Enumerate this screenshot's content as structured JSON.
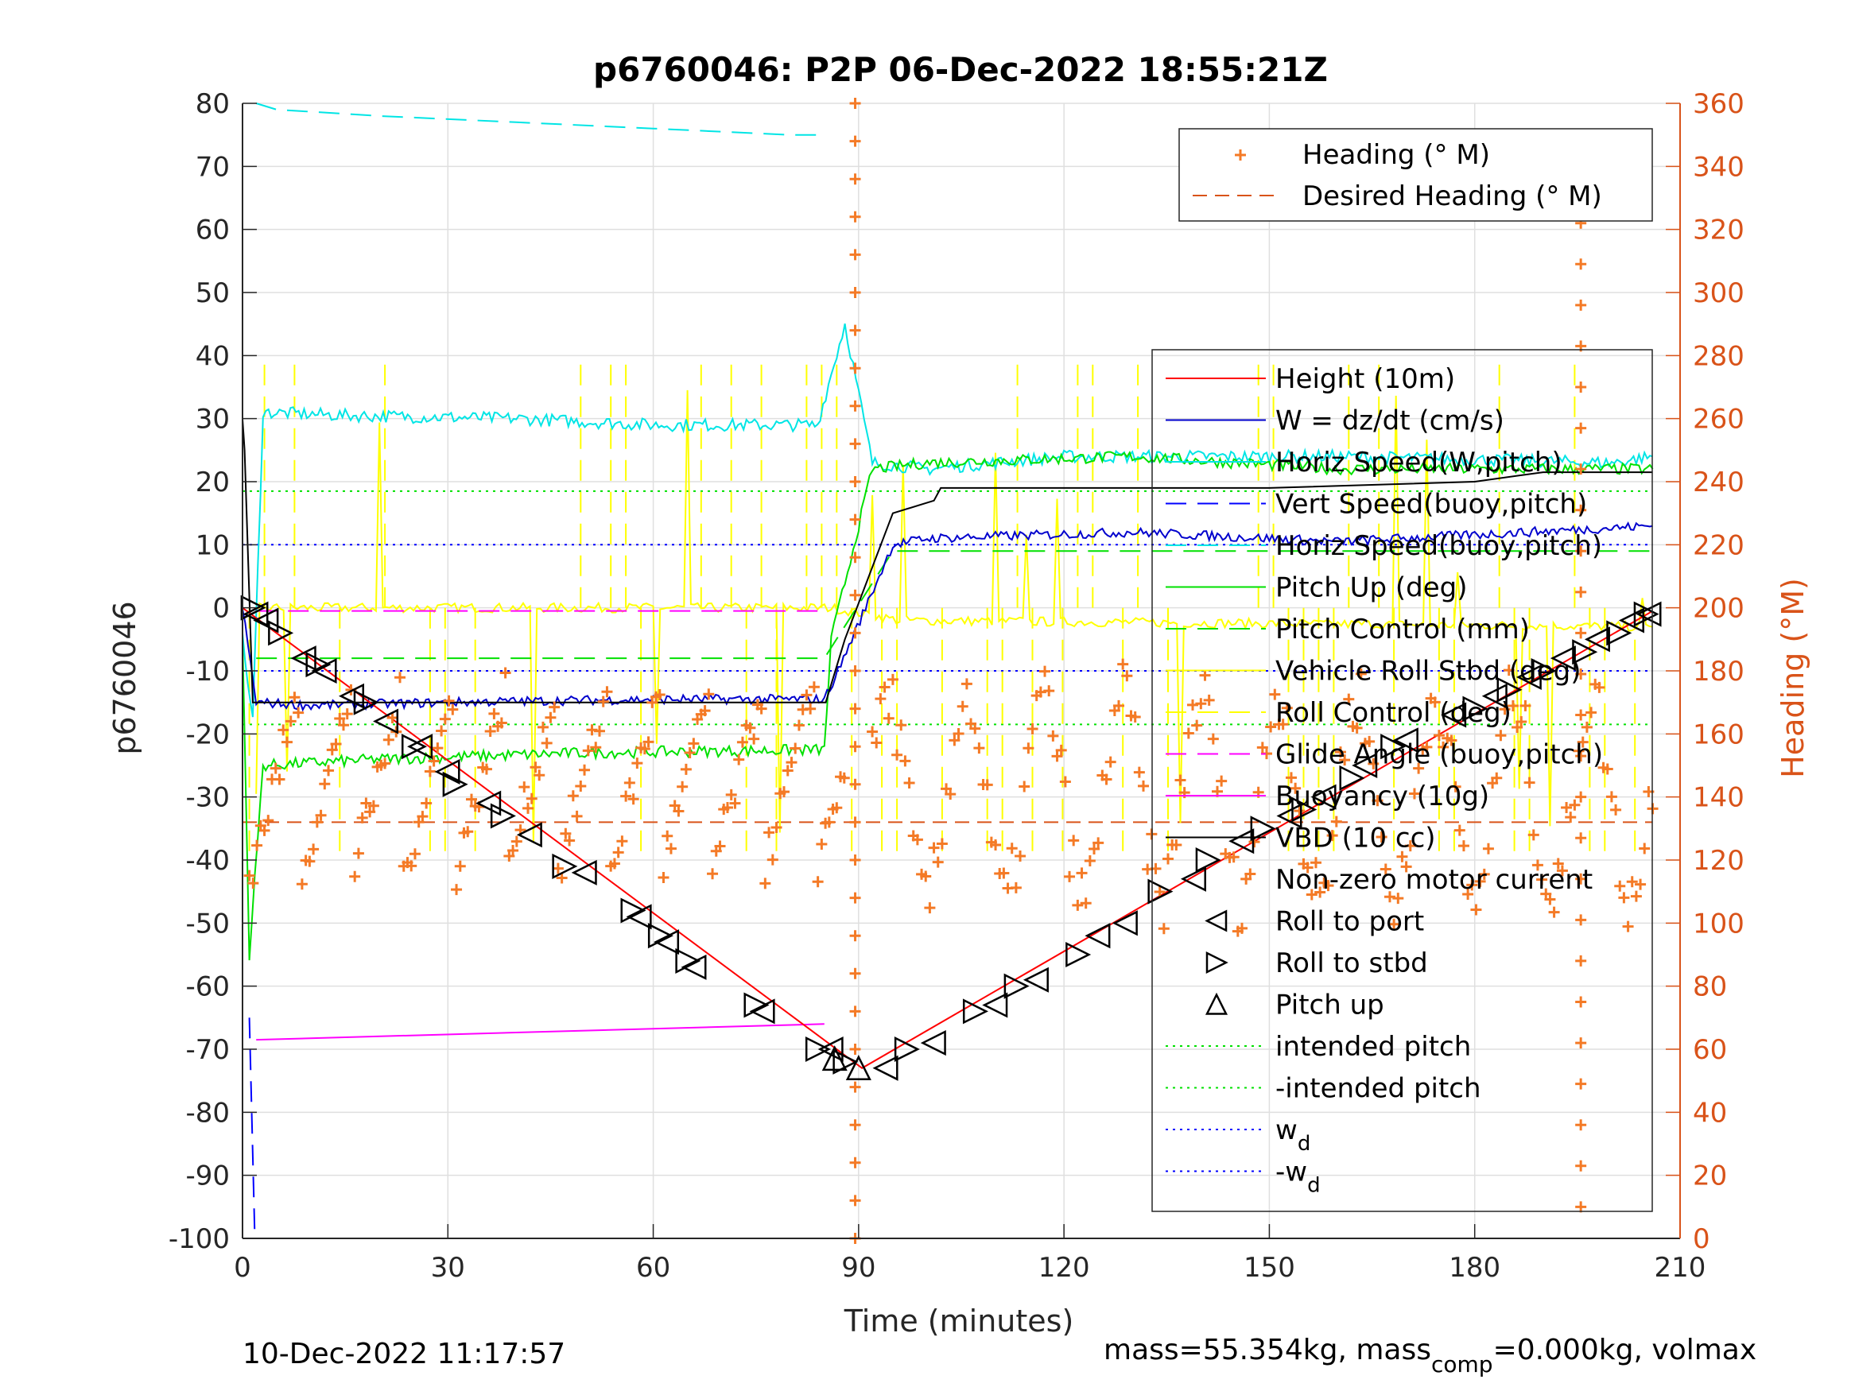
{
  "chart_data": {
    "type": "line",
    "title": "p6760046: P2P 06-Dec-2022 18:55:21Z",
    "xlabel": "Time (minutes)",
    "ylabel": "p6760046",
    "ylabel_right": "Heading (°M)",
    "xlim": [
      0,
      210
    ],
    "ylim": [
      -100,
      80
    ],
    "ylim_right": [
      0,
      360
    ],
    "xticks": [
      "0",
      "30",
      "60",
      "90",
      "120",
      "150",
      "180",
      "210"
    ],
    "yticks": [
      "80",
      "70",
      "60",
      "50",
      "40",
      "30",
      "20",
      "10",
      "0",
      "-10",
      "-20",
      "-30",
      "-40",
      "-50",
      "-60",
      "-70",
      "-80",
      "-90",
      "-100"
    ],
    "yticks_right": [
      "360",
      "340",
      "320",
      "300",
      "280",
      "260",
      "240",
      "220",
      "200",
      "180",
      "160",
      "140",
      "120",
      "100",
      "80",
      "60",
      "40",
      "20",
      "0"
    ],
    "grid": true,
    "legend_right_axis": {
      "placement": "top-right",
      "entries": [
        "Heading (° M)",
        "Desired Heading (° M)"
      ]
    },
    "legend_left_axis": {
      "placement": "right",
      "entries": [
        {
          "label": "Height (10m)",
          "color": "#ff0000",
          "style": "solid"
        },
        {
          "label": "W = dz/dt (cm/s)",
          "color": "#0000cd",
          "style": "solid"
        },
        {
          "label": "Horiz Speed(W,pitch)",
          "color": "#00e5e5",
          "style": "solid"
        },
        {
          "label": "Vert Speed(buoy,pitch)",
          "color": "#0000ff",
          "style": "dashed"
        },
        {
          "label": "Horiz Speed(buoy,pitch)",
          "color": "#00e5e5",
          "style": "dashed"
        },
        {
          "label": "Pitch Up (deg)",
          "color": "#00e000",
          "style": "solid"
        },
        {
          "label": "Pitch Control (mm)",
          "color": "#00e000",
          "style": "dashed"
        },
        {
          "label": "Vehicle Roll Stbd (deg)",
          "color": "#ffff00",
          "style": "solid"
        },
        {
          "label": "Roll Control (deg)",
          "color": "#ffff00",
          "style": "dashed"
        },
        {
          "label": "Glide Angle (buoy,pitch)",
          "color": "#ff00ff",
          "style": "dashed"
        },
        {
          "label": "Buoyancy (10g)",
          "color": "#ff00ff",
          "style": "solid"
        },
        {
          "label": "VBD (10 cc)",
          "color": "#000000",
          "style": "solid"
        },
        {
          "label": "Non-zero motor current",
          "color": "#000000",
          "style": "none"
        },
        {
          "label": "Roll to port",
          "color": "#000000",
          "style": "marker-left"
        },
        {
          "label": "Roll to stbd",
          "color": "#000000",
          "style": "marker-right"
        },
        {
          "label": "Pitch up",
          "color": "#000000",
          "style": "marker-up"
        },
        {
          "label": "intended pitch",
          "color": "#00e000",
          "style": "dotted"
        },
        {
          "label": "-intended pitch",
          "color": "#00e000",
          "style": "dotted"
        },
        {
          "label": "w",
          "sub": "d",
          "color": "#0000ff",
          "style": "dotted"
        },
        {
          "label": "-w",
          "sub": "d",
          "color": "#0000ff",
          "style": "dotted"
        }
      ]
    },
    "reference_lines": {
      "intended_pitch": 18.5,
      "neg_intended_pitch": -18.5,
      "w_d": 10,
      "neg_w_d": -10,
      "desired_heading": 132
    },
    "series": {
      "height": {
        "x": [
          0,
          90.5,
          206
        ],
        "y": [
          0,
          -73,
          -0.5
        ]
      },
      "w": {
        "x": [
          0,
          2,
          10,
          30,
          60,
          85,
          87,
          95,
          100,
          130,
          160,
          206
        ],
        "y": [
          0,
          -15,
          -15.5,
          -15,
          -14.5,
          -14.5,
          -10,
          10,
          11,
          12,
          10.5,
          13
        ]
      },
      "horiz_speed_w": {
        "x": [
          0,
          1.5,
          3,
          15,
          40,
          60,
          84,
          88,
          92,
          100,
          120,
          160,
          200,
          206
        ],
        "y": [
          -5,
          -18,
          31,
          30.5,
          30,
          29,
          29,
          45,
          23,
          22,
          24,
          24,
          23,
          24
        ]
      },
      "vert_speed_buoy": {
        "x": [
          1,
          1.8
        ],
        "y": [
          -65,
          -100
        ]
      },
      "horiz_speed_buoy": {
        "x": [
          2,
          5,
          20,
          40,
          60,
          80,
          85
        ],
        "y": [
          80,
          79,
          78,
          77,
          76,
          75,
          75
        ]
      },
      "pitch_up": {
        "x": [
          0,
          1,
          3,
          20,
          50,
          85,
          86,
          92,
          100,
          130,
          160,
          206
        ],
        "y": [
          -5,
          -55,
          -25,
          -24,
          -23,
          -22.5,
          -5,
          22,
          23,
          24,
          22,
          22
        ]
      },
      "pitch_control": {
        "x": [
          2,
          85,
          95,
          206
        ],
        "y": [
          -8,
          -8,
          9,
          9
        ]
      },
      "vehicle_roll_baseline": {
        "x": [
          2,
          86,
          96,
          206
        ],
        "y": [
          0,
          0,
          -2,
          -3
        ]
      },
      "roll_control_range": [
        -40,
        40
      ],
      "glide_angle": {
        "x": [
          2,
          85
        ],
        "y": [
          -0.5,
          -0.5
        ]
      },
      "buoyancy": {
        "x": [
          2,
          85
        ],
        "y": [
          -68.5,
          -66
        ]
      },
      "vbd": {
        "x": [
          0,
          0.3,
          1.5,
          85,
          85.2,
          88,
          95,
          101,
          102,
          150,
          180,
          190,
          206
        ],
        "y": [
          30,
          25,
          -15,
          -15,
          -15,
          -5,
          15,
          17,
          19,
          19,
          20,
          21.5,
          21.5
        ]
      },
      "heading_ref": {
        "x": [
          0,
          206
        ],
        "y": [
          132,
          132
        ]
      }
    },
    "motor_markers": {
      "roll_to_port": [
        [
          2,
          -1
        ],
        [
          3.5,
          -2
        ],
        [
          9,
          -8
        ],
        [
          12,
          -10
        ],
        [
          16,
          -14
        ],
        [
          21,
          -18
        ],
        [
          26,
          -22
        ],
        [
          30,
          -26
        ],
        [
          36,
          -31
        ],
        [
          42,
          -36
        ],
        [
          50,
          -42
        ],
        [
          58,
          -49
        ],
        [
          62,
          -53
        ],
        [
          66,
          -57
        ],
        [
          76,
          -64
        ],
        [
          86,
          -70
        ],
        [
          94,
          -73
        ],
        [
          101,
          -69
        ],
        [
          110,
          -63
        ],
        [
          116,
          -59
        ],
        [
          125,
          -52
        ],
        [
          129,
          -50
        ],
        [
          139,
          -43
        ],
        [
          146,
          -37
        ],
        [
          153,
          -33
        ],
        [
          158,
          -30
        ],
        [
          164,
          -25
        ],
        [
          170,
          -21
        ],
        [
          177,
          -17
        ],
        [
          183,
          -14
        ],
        [
          188,
          -11
        ],
        [
          193,
          -8
        ],
        [
          198,
          -5
        ],
        [
          203,
          -2
        ],
        [
          205.5,
          -1
        ]
      ],
      "roll_to_stbd": [
        [
          1.5,
          0
        ],
        [
          5.5,
          -4
        ],
        [
          11,
          -9
        ],
        [
          18,
          -15
        ],
        [
          25,
          -22
        ],
        [
          31,
          -28
        ],
        [
          38,
          -33
        ],
        [
          47,
          -41
        ],
        [
          57,
          -48
        ],
        [
          61,
          -52
        ],
        [
          65,
          -56
        ],
        [
          75,
          -63
        ],
        [
          84,
          -70
        ],
        [
          88,
          -72
        ],
        [
          97,
          -70
        ],
        [
          107,
          -64
        ],
        [
          113,
          -60
        ],
        [
          122,
          -55
        ],
        [
          134,
          -45
        ],
        [
          141,
          -40
        ],
        [
          149,
          -35
        ],
        [
          155,
          -32
        ],
        [
          162,
          -27
        ],
        [
          168,
          -22
        ],
        [
          180,
          -16
        ],
        [
          185,
          -13
        ],
        [
          190,
          -10
        ],
        [
          196,
          -7
        ],
        [
          201,
          -4
        ],
        [
          205,
          -1
        ]
      ],
      "pitch_up": [
        [
          86.5,
          -71.5
        ],
        [
          90,
          -73
        ]
      ]
    }
  },
  "footer": {
    "timestamp": "10-Dec-2022 11:17:57",
    "mass_text": "mass=55.354kg, mass",
    "mass_sub": "comp",
    "mass_rest": "=0.000kg, volmax"
  }
}
